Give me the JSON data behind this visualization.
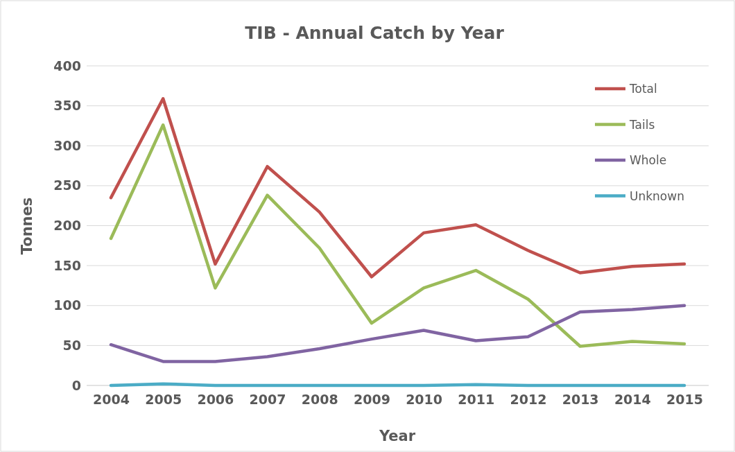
{
  "chart_data": {
    "type": "line",
    "title": "TIB - Annual Catch by Year",
    "xlabel": "Year",
    "ylabel": "Tonnes",
    "categories": [
      "2004",
      "2005",
      "2006",
      "2007",
      "2008",
      "2009",
      "2010",
      "2011",
      "2012",
      "2013",
      "2014",
      "2015"
    ],
    "series": [
      {
        "name": "Total",
        "color": "#c0504d",
        "values": [
          235,
          359,
          152,
          274,
          217,
          136,
          191,
          201,
          169,
          141,
          149,
          152
        ]
      },
      {
        "name": "Tails",
        "color": "#9bbb59",
        "values": [
          184,
          326,
          122,
          238,
          172,
          78,
          122,
          144,
          108,
          49,
          55,
          52
        ]
      },
      {
        "name": "Whole",
        "color": "#8064a2",
        "values": [
          51,
          30,
          30,
          36,
          46,
          58,
          69,
          56,
          61,
          92,
          95,
          100
        ]
      },
      {
        "name": "Unknown",
        "color": "#4bacc6",
        "values": [
          0,
          2,
          0,
          0,
          0,
          0,
          0,
          1,
          0,
          0,
          0,
          0
        ]
      }
    ],
    "ylim": [
      0,
      400
    ],
    "yticks": [
      0,
      50,
      100,
      150,
      200,
      250,
      300,
      350,
      400
    ],
    "grid": "y",
    "legend": "top right",
    "marker": "none",
    "line_style": "solid"
  }
}
